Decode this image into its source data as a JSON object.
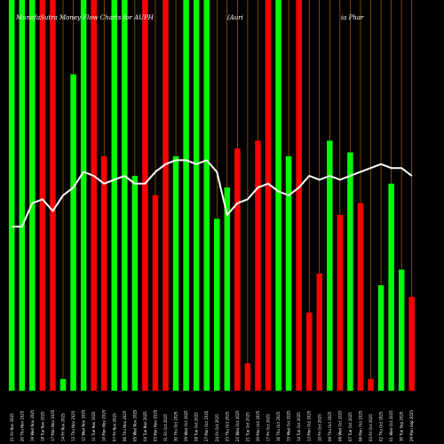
{
  "chart_data": {
    "type": "bar",
    "title": "MunafaSutra Money Flow Charts for AUPH",
    "title_right_parts": [
      "(Auri",
      "ia Phar"
    ],
    "colors": {
      "up": "#00ff00",
      "down": "#ff0000",
      "line": "#ffffff",
      "grid": "#cc7a00",
      "background": "#000000"
    },
    "ylim": [
      0,
      100
    ],
    "categories": [
      "21 Fri Nov 2025",
      "20 Thu Nov 2025",
      "19 Wed Nov 2025",
      "18 Tue Nov 2025",
      "17 Mon Nov 2025",
      "14 Fri Nov 2025",
      "13 Thu Nov 2025",
      "12 Wed Nov 2025",
      "11 Tue Nov 2025",
      "10 Mon Nov 2025",
      "07 Fri Nov 2025",
      "06 Thu Nov 2025",
      "05 Wed Nov 2025",
      "04 Tue Nov 2025",
      "03 Mon Nov 2025",
      "31 Fri Oct 2025",
      "30 Thu Oct 2025",
      "29 Wed Oct 2025",
      "28 Tue Oct 2025",
      "27 Mon Oct 2025",
      "24 Fri Oct 2025",
      "23 Thu Oct 2025",
      "22 Wed Oct 2025",
      "21 Tue Oct 2025",
      "20 Mon Oct 2025",
      "17 Fri Oct 2025",
      "16 Thu Oct 2025",
      "15 Wed Oct 2025",
      "14 Tue Oct 2025",
      "13 Mon Oct 2025",
      "10 Fri Oct 2025",
      "09 Thu Oct 2025",
      "08 Wed Oct 2025",
      "07 Tue Oct 2025",
      "06 Mon Oct 2025",
      "03 Fri Oct 2025",
      "02 Thu Oct 2025",
      "01 Wed Oct 2025",
      "30 Tue Sep 2025",
      "29 Mon Sep 2025"
    ],
    "series": [
      {
        "values": [
          100,
          100,
          100,
          100,
          100,
          3,
          81,
          100,
          100,
          60,
          100,
          100,
          55,
          100,
          50,
          100,
          60,
          100,
          100,
          100,
          44,
          52,
          62,
          7,
          64,
          100,
          100,
          60,
          100,
          20,
          30,
          64,
          45,
          61,
          48,
          3,
          27,
          53,
          31,
          24
        ],
        "flow": [
          "up",
          "up",
          "up",
          "down",
          "down",
          "up",
          "up",
          "up",
          "down",
          "down",
          "up",
          "up",
          "up",
          "down",
          "down",
          "down",
          "up",
          "up",
          "up",
          "up",
          "up",
          "up",
          "down",
          "down",
          "down",
          "down",
          "up",
          "up",
          "down",
          "down",
          "down",
          "up",
          "down",
          "up",
          "down",
          "down",
          "up",
          "up",
          "up",
          "down"
        ]
      },
      {
        "values": [
          42,
          42,
          48,
          49,
          46,
          50,
          52,
          56,
          55,
          53,
          54,
          55,
          53,
          53,
          56,
          58,
          59,
          59,
          58,
          59,
          56,
          45,
          48,
          49,
          52,
          53,
          51,
          50,
          52,
          55,
          54,
          55,
          54,
          55,
          56,
          57,
          58,
          57,
          57,
          55
        ],
        "name": "",
        "kind": "line"
      }
    ]
  }
}
